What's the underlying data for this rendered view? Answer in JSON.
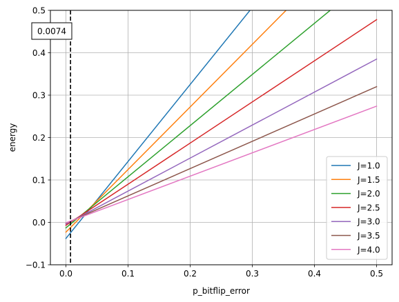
{
  "chart_data": {
    "type": "line",
    "xlabel": "p_bitflip_error",
    "ylabel": "energy",
    "xlim": [
      -0.025,
      0.525
    ],
    "ylim": [
      -0.1,
      0.5
    ],
    "xticks": [
      0.0,
      0.1,
      0.2,
      0.3,
      0.4,
      0.5
    ],
    "yticks": [
      -0.1,
      0.0,
      0.1,
      0.2,
      0.3,
      0.4,
      0.5
    ],
    "xtick_labels": [
      "0.0",
      "0.1",
      "0.2",
      "0.3",
      "0.4",
      "0.5"
    ],
    "ytick_labels": [
      "−0.1",
      "0.0",
      "0.1",
      "0.2",
      "0.3",
      "0.4",
      "0.5"
    ],
    "grid": true,
    "legend_placement": "lower-right",
    "vline": {
      "x": 0.0074,
      "style": "dashed",
      "color": "#000000"
    },
    "annotation": {
      "text": "0.0074"
    },
    "series": [
      {
        "name": "J=1.0",
        "color": "#1f77b4",
        "x": [
          0.0,
          0.5
        ],
        "y": [
          -0.038,
          0.87
        ]
      },
      {
        "name": "J=1.5",
        "color": "#ff7f0e",
        "x": [
          0.0,
          0.5
        ],
        "y": [
          -0.023,
          0.715
        ]
      },
      {
        "name": "J=2.0",
        "color": "#2ca02c",
        "x": [
          0.0,
          0.5
        ],
        "y": [
          -0.013,
          0.59
        ]
      },
      {
        "name": "J=2.5",
        "color": "#d62728",
        "x": [
          0.0,
          0.5
        ],
        "y": [
          -0.007,
          0.478
        ]
      },
      {
        "name": "J=3.0",
        "color": "#9467bd",
        "x": [
          0.0,
          0.5
        ],
        "y": [
          -0.004,
          0.385
        ]
      },
      {
        "name": "J=3.5",
        "color": "#8c564b",
        "x": [
          0.0,
          0.5
        ],
        "y": [
          -0.002,
          0.32
        ]
      },
      {
        "name": "J=4.0",
        "color": "#e377c2",
        "x": [
          0.0,
          0.5
        ],
        "y": [
          -0.001,
          0.274
        ]
      }
    ]
  }
}
